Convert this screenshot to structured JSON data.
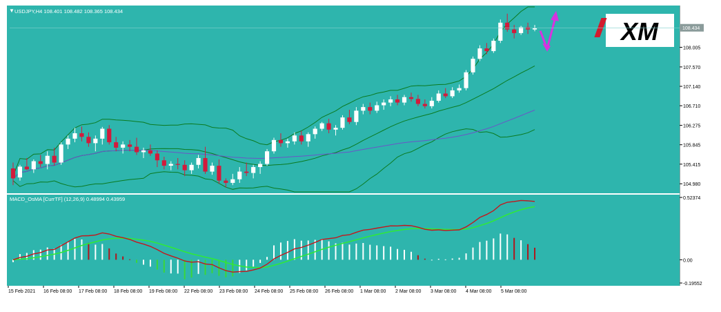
{
  "app": {
    "symbol_line": {
      "icon": "triangle-down-icon",
      "text": "USDJPY,H4  108.401 108.482 108.365 108.434"
    },
    "indicator_line": "MACD_OsMA [CurrTF] (12,26,9) 0.48994 0.43959",
    "logo": {
      "text": "XM",
      "bg": "#ffffff",
      "fg": "#000000",
      "accent": "#d21b2d"
    }
  },
  "colors": {
    "background": "#2eb5ad",
    "bull_candle": "#ffffff",
    "bear_candle": "#d21b3c",
    "bollinger": "#0a7a1f",
    "ma": "#6a55c8",
    "macd_line": "#c4161c",
    "signal_line": "#2fe83a",
    "hist_positive_up": "#ffffff",
    "hist_positive_down": "#b0161c",
    "hist_negative_up": "#ffffff",
    "hist_negative_down": "#3ad63a",
    "arrow": "#d832e0",
    "axis_text": "#000000"
  },
  "chart_data": [
    {
      "type": "candlestick",
      "title": "USDJPY,H4",
      "ylim": [
        104.8,
        108.9
      ],
      "yticks": [
        "108.005",
        "107.570",
        "107.140",
        "106.710",
        "106.275",
        "105.845",
        "105.415",
        "104.980"
      ],
      "current_price_label": "108.434",
      "candles": [
        [
          105.32,
          105.45,
          104.95,
          105.1
        ],
        [
          105.12,
          105.4,
          105.05,
          105.36
        ],
        [
          105.36,
          105.55,
          105.28,
          105.3
        ],
        [
          105.3,
          105.52,
          105.22,
          105.48
        ],
        [
          105.48,
          105.62,
          105.35,
          105.42
        ],
        [
          105.42,
          105.7,
          105.3,
          105.6
        ],
        [
          105.6,
          105.78,
          105.38,
          105.45
        ],
        [
          105.45,
          105.9,
          105.4,
          105.85
        ],
        [
          105.85,
          106.05,
          105.75,
          105.98
        ],
        [
          105.98,
          106.22,
          105.9,
          106.1
        ],
        [
          106.1,
          106.25,
          105.92,
          106.02
        ],
        [
          106.02,
          106.12,
          105.8,
          105.88
        ],
        [
          105.88,
          106.05,
          105.7,
          105.98
        ],
        [
          105.98,
          106.24,
          105.85,
          106.2
        ],
        [
          106.2,
          106.28,
          105.85,
          105.9
        ],
        [
          105.9,
          106.02,
          105.7,
          105.78
        ],
        [
          105.78,
          105.92,
          105.65,
          105.85
        ],
        [
          105.85,
          105.95,
          105.7,
          105.8
        ],
        [
          105.8,
          106.0,
          105.62,
          105.68
        ],
        [
          105.68,
          105.78,
          105.55,
          105.72
        ],
        [
          105.72,
          105.85,
          105.6,
          105.65
        ],
        [
          105.65,
          105.72,
          105.35,
          105.5
        ],
        [
          105.5,
          105.58,
          105.3,
          105.38
        ],
        [
          105.38,
          105.48,
          105.28,
          105.42
        ],
        [
          105.42,
          105.55,
          105.3,
          105.4
        ],
        [
          105.4,
          105.5,
          105.15,
          105.28
        ],
        [
          105.28,
          105.45,
          105.2,
          105.4
        ],
        [
          105.4,
          105.62,
          105.32,
          105.55
        ],
        [
          105.55,
          105.8,
          105.2,
          105.25
        ],
        [
          105.25,
          105.45,
          105.18,
          105.38
        ],
        [
          105.38,
          105.52,
          104.98,
          105.05
        ],
        [
          105.05,
          105.1,
          104.9,
          105.0
        ],
        [
          105.0,
          105.2,
          104.95,
          105.08
        ],
        [
          105.08,
          105.35,
          105.0,
          105.25
        ],
        [
          105.25,
          105.45,
          105.15,
          105.22
        ],
        [
          105.22,
          105.4,
          105.1,
          105.35
        ],
        [
          105.35,
          105.48,
          105.2,
          105.42
        ],
        [
          105.42,
          105.75,
          105.38,
          105.7
        ],
        [
          105.7,
          106.0,
          105.65,
          105.95
        ],
        [
          105.95,
          106.1,
          105.8,
          105.88
        ],
        [
          105.88,
          105.98,
          105.78,
          105.92
        ],
        [
          105.92,
          106.12,
          105.85,
          106.05
        ],
        [
          106.05,
          106.15,
          105.85,
          105.92
        ],
        [
          105.92,
          106.12,
          105.8,
          106.08
        ],
        [
          106.08,
          106.25,
          105.98,
          106.2
        ],
        [
          106.2,
          106.35,
          106.15,
          106.32
        ],
        [
          106.32,
          106.42,
          106.1,
          106.18
        ],
        [
          106.18,
          106.28,
          106.05,
          106.22
        ],
        [
          106.22,
          106.5,
          106.18,
          106.45
        ],
        [
          106.45,
          106.62,
          106.3,
          106.35
        ],
        [
          106.35,
          106.68,
          106.28,
          106.6
        ],
        [
          106.6,
          106.75,
          106.52,
          106.68
        ],
        [
          106.68,
          106.78,
          106.52,
          106.6
        ],
        [
          106.6,
          106.8,
          106.55,
          106.72
        ],
        [
          106.72,
          106.85,
          106.62,
          106.78
        ],
        [
          106.78,
          106.92,
          106.7,
          106.85
        ],
        [
          106.85,
          106.95,
          106.72,
          106.78
        ],
        [
          106.78,
          106.95,
          106.72,
          106.9
        ],
        [
          106.9,
          107.0,
          106.8,
          106.86
        ],
        [
          106.86,
          106.95,
          106.7,
          106.75
        ],
        [
          106.75,
          106.85,
          106.65,
          106.7
        ],
        [
          106.7,
          106.9,
          106.65,
          106.82
        ],
        [
          106.82,
          107.05,
          106.78,
          106.98
        ],
        [
          106.98,
          107.1,
          106.88,
          106.92
        ],
        [
          106.92,
          107.12,
          106.88,
          107.05
        ],
        [
          107.05,
          107.18,
          107.0,
          107.1
        ],
        [
          107.1,
          107.5,
          107.05,
          107.45
        ],
        [
          107.45,
          107.8,
          107.4,
          107.75
        ],
        [
          107.75,
          108.05,
          107.7,
          107.98
        ],
        [
          107.98,
          108.1,
          107.85,
          107.92
        ],
        [
          107.92,
          108.2,
          107.88,
          108.15
        ],
        [
          108.15,
          108.62,
          108.1,
          108.55
        ],
        [
          108.55,
          108.75,
          108.35,
          108.4
        ],
        [
          108.4,
          108.5,
          108.2,
          108.32
        ],
        [
          108.32,
          108.48,
          108.28,
          108.45
        ],
        [
          108.45,
          108.55,
          108.3,
          108.4
        ],
        [
          108.4,
          108.5,
          108.36,
          108.43
        ]
      ],
      "forecast_arrow": {
        "direction": "down then up"
      }
    },
    {
      "type": "macd",
      "title": "MACD_OsMA [CurrTF] (12,26,9)",
      "values": [
        0.48994,
        0.43959
      ],
      "ylim": [
        -0.19552,
        0.52374
      ],
      "yticks": [
        "0.52374",
        "0.00",
        "-0.19552"
      ],
      "xticks": [
        "15 Feb 2021",
        "16 Feb 08:00",
        "17 Feb 08:00",
        "18 Feb 08:00",
        "19 Feb 08:00",
        "22 Feb 08:00",
        "23 Feb 08:00",
        "24 Feb 08:00",
        "25 Feb 08:00",
        "26 Feb 08:00",
        "1 Mar 08:00",
        "2 Mar 08:00",
        "3 Mar 08:00",
        "4 Mar 08:00",
        "5 Mar 08:00"
      ]
    }
  ]
}
